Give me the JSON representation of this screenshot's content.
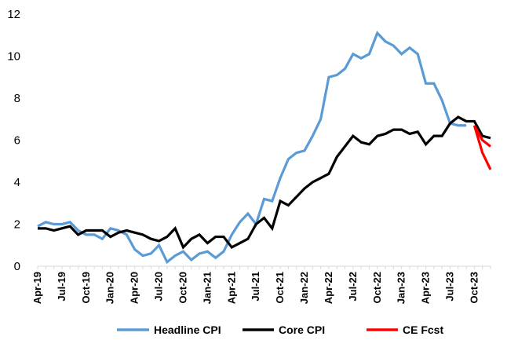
{
  "chart_data": {
    "type": "line",
    "title": "",
    "xlabel": "",
    "ylabel": "",
    "ylim": [
      0,
      12
    ],
    "yticks": [
      0,
      2,
      4,
      6,
      8,
      10,
      12
    ],
    "grid": false,
    "legend_position": "bottom",
    "x": [
      "Apr-19",
      "May-19",
      "Jun-19",
      "Jul-19",
      "Aug-19",
      "Sep-19",
      "Oct-19",
      "Nov-19",
      "Dec-19",
      "Jan-20",
      "Feb-20",
      "Mar-20",
      "Apr-20",
      "May-20",
      "Jun-20",
      "Jul-20",
      "Aug-20",
      "Sep-20",
      "Oct-20",
      "Nov-20",
      "Dec-20",
      "Jan-21",
      "Feb-21",
      "Mar-21",
      "Apr-21",
      "May-21",
      "Jun-21",
      "Jul-21",
      "Aug-21",
      "Sep-21",
      "Oct-21",
      "Nov-21",
      "Dec-21",
      "Jan-22",
      "Feb-22",
      "Mar-22",
      "Apr-22",
      "May-22",
      "Jun-22",
      "Jul-22",
      "Aug-22",
      "Sep-22",
      "Oct-22",
      "Nov-22",
      "Dec-22",
      "Jan-23",
      "Feb-23",
      "Mar-23",
      "Apr-23",
      "May-23",
      "Jun-23",
      "Jul-23",
      "Aug-23",
      "Sep-23",
      "Oct-23",
      "Nov-23",
      "Dec-23"
    ],
    "x_tick_labels": [
      "Apr-19",
      "Jul-19",
      "Oct-19",
      "Jan-20",
      "Apr-20",
      "Jul-20",
      "Oct-20",
      "Jan-21",
      "Apr-21",
      "Jul-21",
      "Oct-21",
      "Jan-22",
      "Apr-22",
      "Jul-22",
      "Oct-22",
      "Jan-23",
      "Apr-23",
      "Jul-23",
      "Oct-23"
    ],
    "series": [
      {
        "name": "Headline CPI",
        "color": "#5B9BD5",
        "values": [
          1.9,
          2.1,
          2.0,
          2.0,
          2.1,
          1.7,
          1.5,
          1.5,
          1.3,
          1.8,
          1.7,
          1.5,
          0.8,
          0.5,
          0.6,
          1.0,
          0.2,
          0.5,
          0.7,
          0.3,
          0.6,
          0.7,
          0.4,
          0.7,
          1.5,
          2.1,
          2.5,
          2.0,
          3.2,
          3.1,
          4.2,
          5.1,
          5.4,
          5.5,
          6.2,
          7.0,
          9.0,
          9.1,
          9.4,
          10.1,
          9.9,
          10.1,
          11.1,
          10.7,
          10.5,
          10.1,
          10.4,
          10.1,
          8.7,
          8.7,
          7.9,
          6.8,
          6.7,
          6.7,
          null,
          null,
          null
        ]
      },
      {
        "name": "Core CPI",
        "color": "#000000",
        "values": [
          1.8,
          1.8,
          1.7,
          1.8,
          1.9,
          1.5,
          1.7,
          1.7,
          1.7,
          1.4,
          1.6,
          1.7,
          1.6,
          1.5,
          1.3,
          1.2,
          1.4,
          1.8,
          0.9,
          1.3,
          1.5,
          1.1,
          1.4,
          1.4,
          0.9,
          1.1,
          1.3,
          2.0,
          2.3,
          1.8,
          3.1,
          2.9,
          3.3,
          3.7,
          4.0,
          4.2,
          4.4,
          5.2,
          5.7,
          6.2,
          5.9,
          5.8,
          6.2,
          6.3,
          6.5,
          6.5,
          6.3,
          6.4,
          5.8,
          6.2,
          6.2,
          6.8,
          7.1,
          6.9,
          6.9,
          6.2,
          6.1
        ]
      },
      {
        "name": "CE Fcst",
        "color": "#FF0000",
        "values": [
          null,
          null,
          null,
          null,
          null,
          null,
          null,
          null,
          null,
          null,
          null,
          null,
          null,
          null,
          null,
          null,
          null,
          null,
          null,
          null,
          null,
          null,
          null,
          null,
          null,
          null,
          null,
          null,
          null,
          null,
          null,
          null,
          null,
          null,
          null,
          null,
          null,
          null,
          null,
          null,
          null,
          null,
          null,
          null,
          null,
          null,
          null,
          null,
          null,
          null,
          null,
          null,
          null,
          null,
          6.7,
          6.0,
          5.7
        ]
      }
    ],
    "extra_segments": [
      {
        "series": "CE Fcst",
        "points": [
          [
            54,
            6.7
          ],
          [
            55,
            5.4
          ],
          [
            56,
            4.6
          ]
        ]
      }
    ]
  }
}
